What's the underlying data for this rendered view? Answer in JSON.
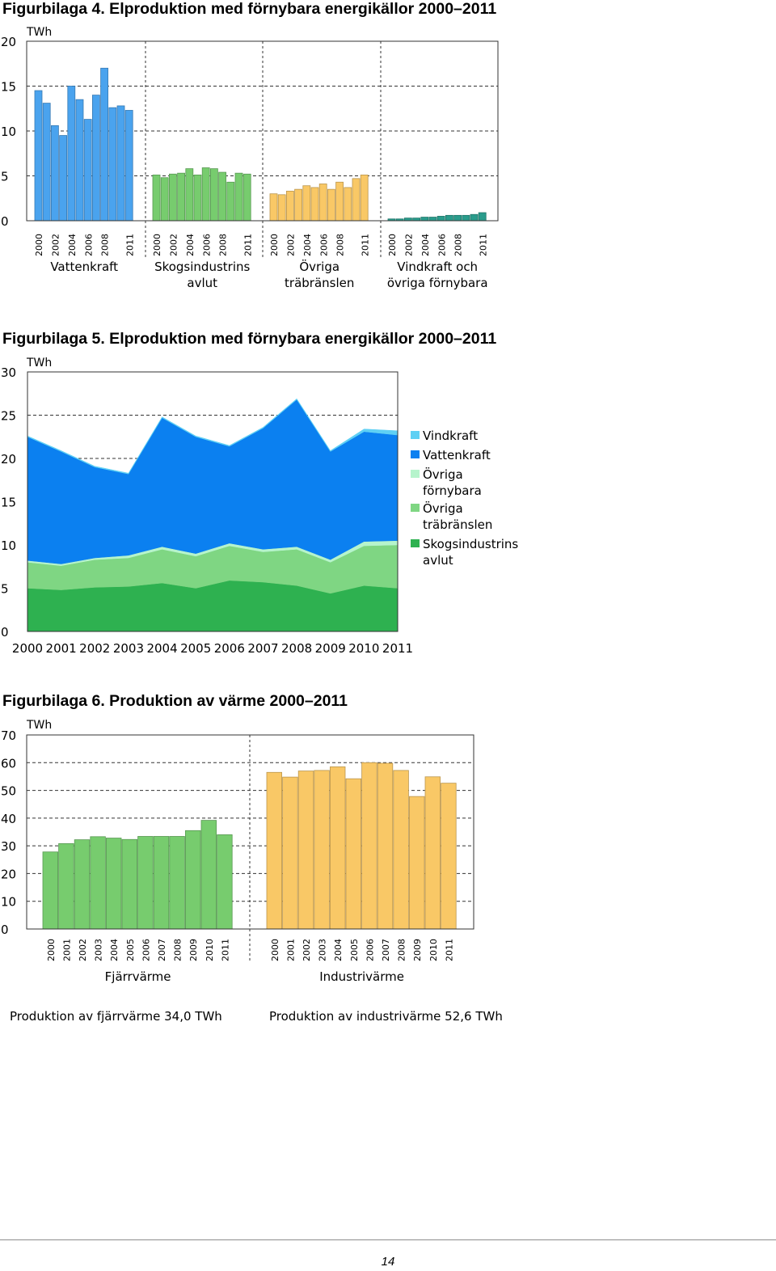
{
  "figures": [
    {
      "title": "Figurbilaga 4. Elproduktion med förnybara energikällor 2000–2011"
    },
    {
      "title": "Figurbilaga 5. Elproduktion med förnybara energikällor 2000–2011"
    },
    {
      "title": "Figurbilaga 6. Produktion av värme 2000–2011"
    }
  ],
  "page_number": "14",
  "chart_data": [
    {
      "type": "bar",
      "unit": "TWh",
      "ylim": [
        0,
        20
      ],
      "yticks": [
        0,
        5,
        10,
        15,
        20
      ],
      "grid": true,
      "x": [
        "2000",
        "2001",
        "2002",
        "2003",
        "2004",
        "2005",
        "2006",
        "2007",
        "2008",
        "2009",
        "2010",
        "2011"
      ],
      "x_tick_labels": [
        "2000",
        "2002",
        "2004",
        "2006",
        "2008",
        "2011"
      ],
      "groups": [
        {
          "label": "Vattenkraft",
          "color": "#4aa3ee",
          "values": [
            14.5,
            13.1,
            10.6,
            9.5,
            15.0,
            13.5,
            11.3,
            14.0,
            17.0,
            12.6,
            12.8,
            12.3
          ]
        },
        {
          "label": "Skogsindustrins avlut",
          "color": "#77cc6e",
          "values": [
            5.1,
            4.8,
            5.2,
            5.3,
            5.8,
            5.1,
            5.9,
            5.8,
            5.4,
            4.3,
            5.3,
            5.2
          ]
        },
        {
          "label": "Övriga träbränslen",
          "color": "#f9c866",
          "values": [
            3.0,
            2.9,
            3.3,
            3.5,
            3.9,
            3.7,
            4.1,
            3.5,
            4.3,
            3.7,
            4.7,
            5.1
          ]
        },
        {
          "label": "Vindkraft och övriga förnybara",
          "color": "#2a9c8c",
          "values": [
            0.2,
            0.2,
            0.3,
            0.3,
            0.4,
            0.4,
            0.5,
            0.6,
            0.6,
            0.6,
            0.7,
            0.9
          ]
        }
      ]
    },
    {
      "type": "area",
      "unit": "TWh",
      "ylim": [
        0,
        30
      ],
      "yticks": [
        0,
        5,
        10,
        15,
        20,
        25,
        30
      ],
      "grid": true,
      "stacked": true,
      "legend_position": "right",
      "x": [
        "2000",
        "2001",
        "2002",
        "2003",
        "2004",
        "2005",
        "2006",
        "2007",
        "2008",
        "2009",
        "2010",
        "2011"
      ],
      "legend": [
        {
          "label": "Vindkraft",
          "color": "#5fd0f4"
        },
        {
          "label": "Vattenkraft",
          "color": "#0b80f0"
        },
        {
          "label": "Övriga förnybara",
          "color": "#b6f4cc"
        },
        {
          "label": "Övriga träbränslen",
          "color": "#7fd683"
        },
        {
          "label": "Skogsindustrins avlut",
          "color": "#2eb150"
        }
      ],
      "series": [
        {
          "name": "Skogsindustrins avlut",
          "color": "#2eb150",
          "values": [
            5.0,
            4.8,
            5.1,
            5.2,
            5.6,
            5.0,
            5.9,
            5.7,
            5.3,
            4.4,
            5.3,
            5.0
          ]
        },
        {
          "name": "Övriga träbränslen",
          "color": "#7fd683",
          "values": [
            3.0,
            2.8,
            3.2,
            3.3,
            3.9,
            3.7,
            4.0,
            3.5,
            4.2,
            3.6,
            4.6,
            5.0
          ]
        },
        {
          "name": "Övriga förnybara",
          "color": "#b6f4cc",
          "values": [
            0.2,
            0.2,
            0.2,
            0.3,
            0.3,
            0.3,
            0.3,
            0.3,
            0.3,
            0.3,
            0.5,
            0.5
          ]
        },
        {
          "name": "Vattenkraft",
          "color": "#0b80f0",
          "values": [
            14.3,
            13.0,
            10.5,
            9.4,
            14.9,
            13.5,
            11.2,
            14.0,
            17.0,
            12.5,
            12.7,
            12.2
          ]
        },
        {
          "name": "Vindkraft",
          "color": "#5fd0f4",
          "values": [
            0.1,
            0.1,
            0.1,
            0.1,
            0.1,
            0.1,
            0.1,
            0.1,
            0.1,
            0.1,
            0.3,
            0.5
          ]
        }
      ]
    },
    {
      "type": "bar",
      "unit": "TWh",
      "ylim": [
        0,
        70
      ],
      "yticks": [
        0,
        10,
        20,
        30,
        40,
        50,
        60,
        70
      ],
      "grid": true,
      "x": [
        "2000",
        "2001",
        "2002",
        "2003",
        "2004",
        "2005",
        "2006",
        "2007",
        "2008",
        "2009",
        "2010",
        "2011"
      ],
      "groups": [
        {
          "label": "Fjärrvärme",
          "color": "#77cc6e",
          "values": [
            27.8,
            30.8,
            32.2,
            33.3,
            32.8,
            32.3,
            33.4,
            33.4,
            33.4,
            35.5,
            39.2,
            34.0
          ]
        },
        {
          "label": "Industrivärme",
          "color": "#f9c866",
          "values": [
            56.5,
            54.8,
            57.0,
            57.2,
            58.5,
            54.2,
            60.0,
            59.8,
            57.2,
            47.8,
            54.9,
            52.6
          ]
        }
      ],
      "notes": [
        "Produktion av fjärrvärme 34,0 TWh",
        "Produktion av industrivärme 52,6 TWh"
      ]
    }
  ]
}
